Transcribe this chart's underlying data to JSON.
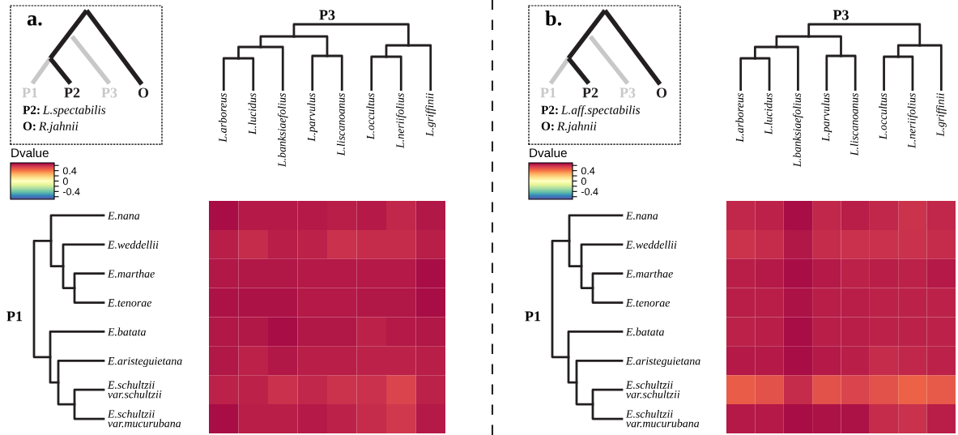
{
  "chart_data": [
    {
      "type": "heatmap",
      "xlabel": "P3",
      "ylabel": "P1",
      "clabel": "Dvalue",
      "clim": [
        -0.7,
        0.7
      ],
      "cticks": [
        {
          "value": 0.6,
          "label": null
        },
        0.4,
        {
          "value": 0.2,
          "label": null
        },
        0,
        {
          "value": -0.2,
          "label": null
        },
        -0.4,
        {
          "value": -0.6,
          "label": null
        }
      ],
      "annotations": [
        "a.",
        "P1",
        "P2",
        "P3",
        "O",
        "P2: L.spectabilis",
        "O: R.jahnii"
      ],
      "categories": [
        "L.arboreus",
        "L.lucidus",
        "L.banksiaefolius",
        "L.parvulus",
        "L.liscanoanus",
        "L.occultus",
        "L.neriifolius",
        "L.griffinii"
      ],
      "y_categories": [
        "E.nana",
        "E.weddellii",
        "E.marthae",
        "E.tenorae",
        "E.batata",
        "E.aristeguietana",
        "E.schultzii\nvar.schultzii",
        "E.schultzii\nvar.mucurubana"
      ],
      "cells": [
        [
          0.67,
          0.64,
          0.64,
          0.64,
          0.63,
          0.64,
          0.61,
          0.65
        ],
        [
          0.63,
          0.6,
          0.63,
          0.62,
          0.59,
          0.6,
          0.6,
          0.63
        ],
        [
          0.65,
          0.65,
          0.65,
          0.64,
          0.64,
          0.64,
          0.64,
          0.67
        ],
        [
          0.66,
          0.66,
          0.66,
          0.64,
          0.64,
          0.65,
          0.65,
          0.67
        ],
        [
          0.65,
          0.65,
          0.67,
          0.65,
          0.65,
          0.62,
          0.64,
          0.65
        ],
        [
          0.65,
          0.62,
          0.65,
          0.63,
          0.63,
          0.62,
          0.62,
          0.63
        ],
        [
          0.62,
          0.62,
          0.59,
          0.61,
          0.58,
          0.59,
          0.54,
          0.62
        ],
        [
          0.67,
          0.63,
          0.63,
          0.64,
          0.62,
          0.6,
          0.57,
          0.64
        ]
      ]
    },
    {
      "type": "heatmap",
      "xlabel": "P3",
      "ylabel": "P1",
      "clabel": "Dvalue",
      "clim": [
        -0.7,
        0.7
      ],
      "cticks": [
        {
          "value": 0.6,
          "label": null
        },
        0.4,
        {
          "value": 0.2,
          "label": null
        },
        0,
        {
          "value": -0.2,
          "label": null
        },
        -0.4,
        {
          "value": -0.6,
          "label": null
        }
      ],
      "annotations": [
        "b.",
        "P1",
        "P2",
        "P3",
        "O",
        "P2: L.aff.spectabilis",
        "O: R.jahnii"
      ],
      "categories": [
        "L.arboreus",
        "L.lucidus",
        "L.banksiaefolius",
        "L.parvulus",
        "L.liscanoanus",
        "L.occultus",
        "L.neriifolius",
        "L.griffinii"
      ],
      "y_categories": [
        "E.nana",
        "E.weddellii",
        "E.marthae",
        "E.tenorae",
        "E.batata",
        "E.aristeguietana",
        "E.schultzii\nvar.schultzii",
        "E.schultzii\nvar.mucurubana"
      ],
      "cells": [
        [
          0.61,
          0.62,
          0.67,
          0.61,
          0.63,
          0.61,
          0.58,
          0.61
        ],
        [
          0.58,
          0.6,
          0.65,
          0.6,
          0.59,
          0.59,
          0.59,
          0.6
        ],
        [
          0.63,
          0.64,
          0.67,
          0.64,
          0.62,
          0.63,
          0.62,
          0.64
        ],
        [
          0.63,
          0.63,
          0.66,
          0.63,
          0.63,
          0.62,
          0.62,
          0.62
        ],
        [
          0.62,
          0.63,
          0.67,
          0.63,
          0.63,
          0.62,
          0.62,
          0.62
        ],
        [
          0.64,
          0.64,
          0.67,
          0.64,
          0.63,
          0.6,
          0.61,
          0.62
        ],
        [
          0.47,
          0.5,
          0.6,
          0.5,
          0.54,
          0.5,
          0.45,
          0.48
        ],
        [
          0.64,
          0.64,
          0.67,
          0.66,
          0.66,
          0.6,
          0.59,
          0.63
        ]
      ]
    }
  ]
}
